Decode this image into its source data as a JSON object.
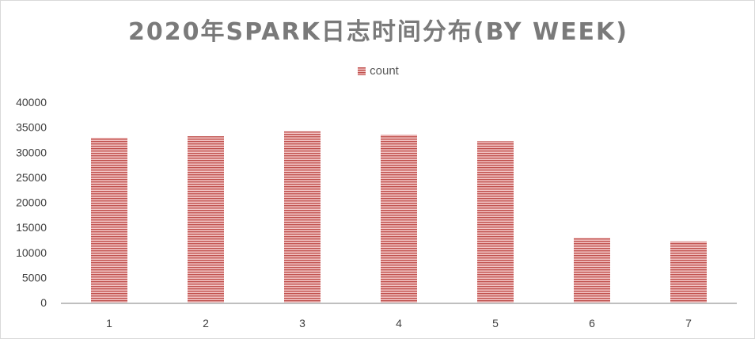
{
  "chart_data": {
    "type": "bar",
    "title": "2020年SPARK日志时间分布(BY WEEK)",
    "categories": [
      "1",
      "2",
      "3",
      "4",
      "5",
      "6",
      "7"
    ],
    "series": [
      {
        "name": "count",
        "values": [
          32900,
          33200,
          34200,
          33500,
          32200,
          12900,
          12200
        ]
      }
    ],
    "ylim": [
      0,
      40000
    ],
    "yticks": [
      0,
      5000,
      10000,
      15000,
      20000,
      25000,
      30000,
      35000,
      40000
    ],
    "gridlines": false,
    "legend_position": "top",
    "colors": {
      "bar_fill": "#f2c4c4",
      "bar_stripe": "#c0504d",
      "axis": "#bfbfbf",
      "title": "#7a7a7a"
    }
  }
}
